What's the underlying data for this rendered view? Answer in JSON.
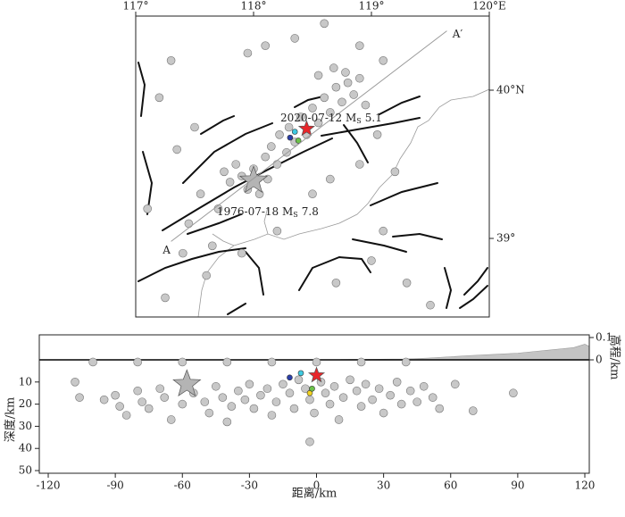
{
  "chart_data": [
    {
      "type": "map",
      "xlim": [
        117,
        120
      ],
      "ylim": [
        38.47,
        40.5
      ],
      "xticks": [
        {
          "value": 117,
          "label": "117°"
        },
        {
          "value": 118,
          "label": "118°"
        },
        {
          "value": 119,
          "label": "119°"
        },
        {
          "value": 120,
          "label": "120°E"
        }
      ],
      "yticks": [
        {
          "value": 39,
          "label": "39°"
        },
        {
          "value": 40,
          "label": "40°N"
        }
      ],
      "series": [
        {
          "color": "#c8c8c8",
          "x": [
            117.75,
            117.8,
            117.85,
            117.9,
            117.95,
            118.0,
            118.05,
            118.1,
            118.12,
            118.15,
            118.2,
            118.22,
            118.28,
            118.3,
            118.35,
            118.4,
            118.45,
            118.5,
            118.55,
            118.6,
            118.65,
            118.7,
            118.75,
            118.8,
            118.85,
            118.9,
            118.95,
            118.68,
            118.55,
            118.78,
            117.2,
            117.3,
            117.5,
            117.35,
            117.55,
            117.45,
            117.65,
            117.7,
            117.6,
            117.9,
            118.2,
            118.1,
            117.95,
            118.35,
            118.6,
            118.9,
            119.1,
            119.05,
            118.9,
            119.2,
            119.1,
            118.7,
            119.3,
            119.0,
            117.25,
            117.4,
            118.5,
            118.65,
            117.1,
            119.5
          ],
          "values": [
            39.45,
            39.38,
            39.5,
            39.42,
            39.33,
            39.47,
            39.3,
            39.55,
            39.4,
            39.62,
            39.5,
            39.7,
            39.58,
            39.75,
            39.65,
            39.82,
            39.7,
            39.88,
            39.78,
            39.95,
            39.85,
            40.02,
            39.92,
            40.05,
            39.97,
            40.08,
            39.9,
            40.15,
            40.1,
            40.12,
            39.95,
            40.2,
            39.75,
            39.6,
            39.3,
            39.1,
            38.95,
            39.2,
            38.75,
            38.9,
            39.05,
            40.3,
            40.25,
            40.35,
            40.45,
            40.3,
            40.2,
            39.7,
            39.5,
            39.45,
            39.05,
            38.7,
            38.7,
            38.85,
            38.6,
            38.9,
            39.3,
            39.4,
            39.2,
            38.55
          ]
        },
        {
          "color": "#3ec9e0",
          "x": [
            118.35
          ],
          "values": [
            39.72
          ]
        },
        {
          "color": "#2b3fa8",
          "x": [
            118.31
          ],
          "values": [
            39.68
          ]
        },
        {
          "color": "#6cc24a",
          "x": [
            118.38
          ],
          "values": [
            39.66
          ]
        }
      ],
      "events": [
        {
          "x": 118.45,
          "y": 39.74,
          "color": "#e8262a",
          "label": {
            "text": "2020-07-12 M",
            "sub": "S",
            "mag": 5.1
          }
        },
        {
          "x": 118.0,
          "y": 39.39,
          "color": "#b4b4b4",
          "label": {
            "text": "1976-07-18 M",
            "sub": "S",
            "mag": 7.8
          }
        }
      ],
      "profile": {
        "x": [
          117.3,
          119.64
        ],
        "y": [
          38.98,
          40.4
        ],
        "start_label": "A",
        "end_label": "A′"
      }
    },
    {
      "type": "section",
      "x_label": "距离/km",
      "y_label": "深度/km",
      "y2_label": "高程/km",
      "xlim": [
        -124,
        122
      ],
      "ylim": [
        0,
        51.2
      ],
      "y2lim": [
        0,
        0.112
      ],
      "xticks": [
        -120,
        -90,
        -60,
        -30,
        0,
        30,
        60,
        90,
        120
      ],
      "yticks": [
        10,
        20,
        30,
        40,
        50
      ],
      "y2ticks": [
        0,
        0.1
      ],
      "series": [
        {
          "color": "#c8c8c8",
          "x": [
            -108,
            -106,
            -95,
            -90,
            -88,
            -85,
            -80,
            -78,
            -75,
            -70,
            -68,
            -65,
            -60,
            -55,
            -50,
            -48,
            -45,
            -42,
            -40,
            -38,
            -35,
            -32,
            -30,
            -28,
            -25,
            -22,
            -20,
            -18,
            -15,
            -12,
            -10,
            -8,
            -5,
            -3,
            -1,
            2,
            4,
            6,
            8,
            10,
            12,
            15,
            18,
            20,
            22,
            25,
            28,
            30,
            33,
            36,
            38,
            42,
            45,
            48,
            52,
            55,
            62,
            70,
            88,
            -3,
            -100,
            -80,
            -60,
            -40,
            -20,
            0,
            20,
            40
          ],
          "values": [
            10,
            17,
            18,
            16,
            21,
            25,
            14,
            19,
            22,
            13,
            17,
            27,
            20,
            15,
            19,
            24,
            12,
            17,
            28,
            21,
            14,
            18,
            11,
            22,
            16,
            13,
            25,
            19,
            11,
            15,
            22,
            9,
            13,
            18,
            24,
            10,
            15,
            20,
            12,
            27,
            17,
            9,
            14,
            21,
            11,
            18,
            13,
            24,
            16,
            10,
            20,
            14,
            19,
            12,
            17,
            22,
            11,
            23,
            15,
            37,
            1,
            1,
            1,
            1,
            1,
            1,
            1,
            1
          ]
        },
        {
          "color": "#3ec9e0",
          "x": [
            -7
          ],
          "values": [
            6
          ]
        },
        {
          "color": "#2b3fa8",
          "x": [
            -12
          ],
          "values": [
            8
          ]
        },
        {
          "color": "#f2d320",
          "x": [
            -3
          ],
          "values": [
            15
          ]
        },
        {
          "color": "#6cc24a",
          "x": [
            -2
          ],
          "values": [
            13
          ]
        }
      ],
      "events": [
        {
          "x": 0,
          "y": 7,
          "color": "#e8262a"
        },
        {
          "x": -58,
          "y": 11,
          "color": "#b4b4b4"
        }
      ],
      "elevation": {
        "color": "#c4c4c4",
        "x": [
          -124,
          0,
          40,
          50,
          60,
          70,
          80,
          90,
          100,
          105,
          110,
          115,
          120,
          122
        ],
        "values": [
          0,
          0,
          0.004,
          0.008,
          0.014,
          0.02,
          0.025,
          0.03,
          0.04,
          0.045,
          0.05,
          0.055,
          0.07,
          0.06
        ]
      }
    }
  ]
}
